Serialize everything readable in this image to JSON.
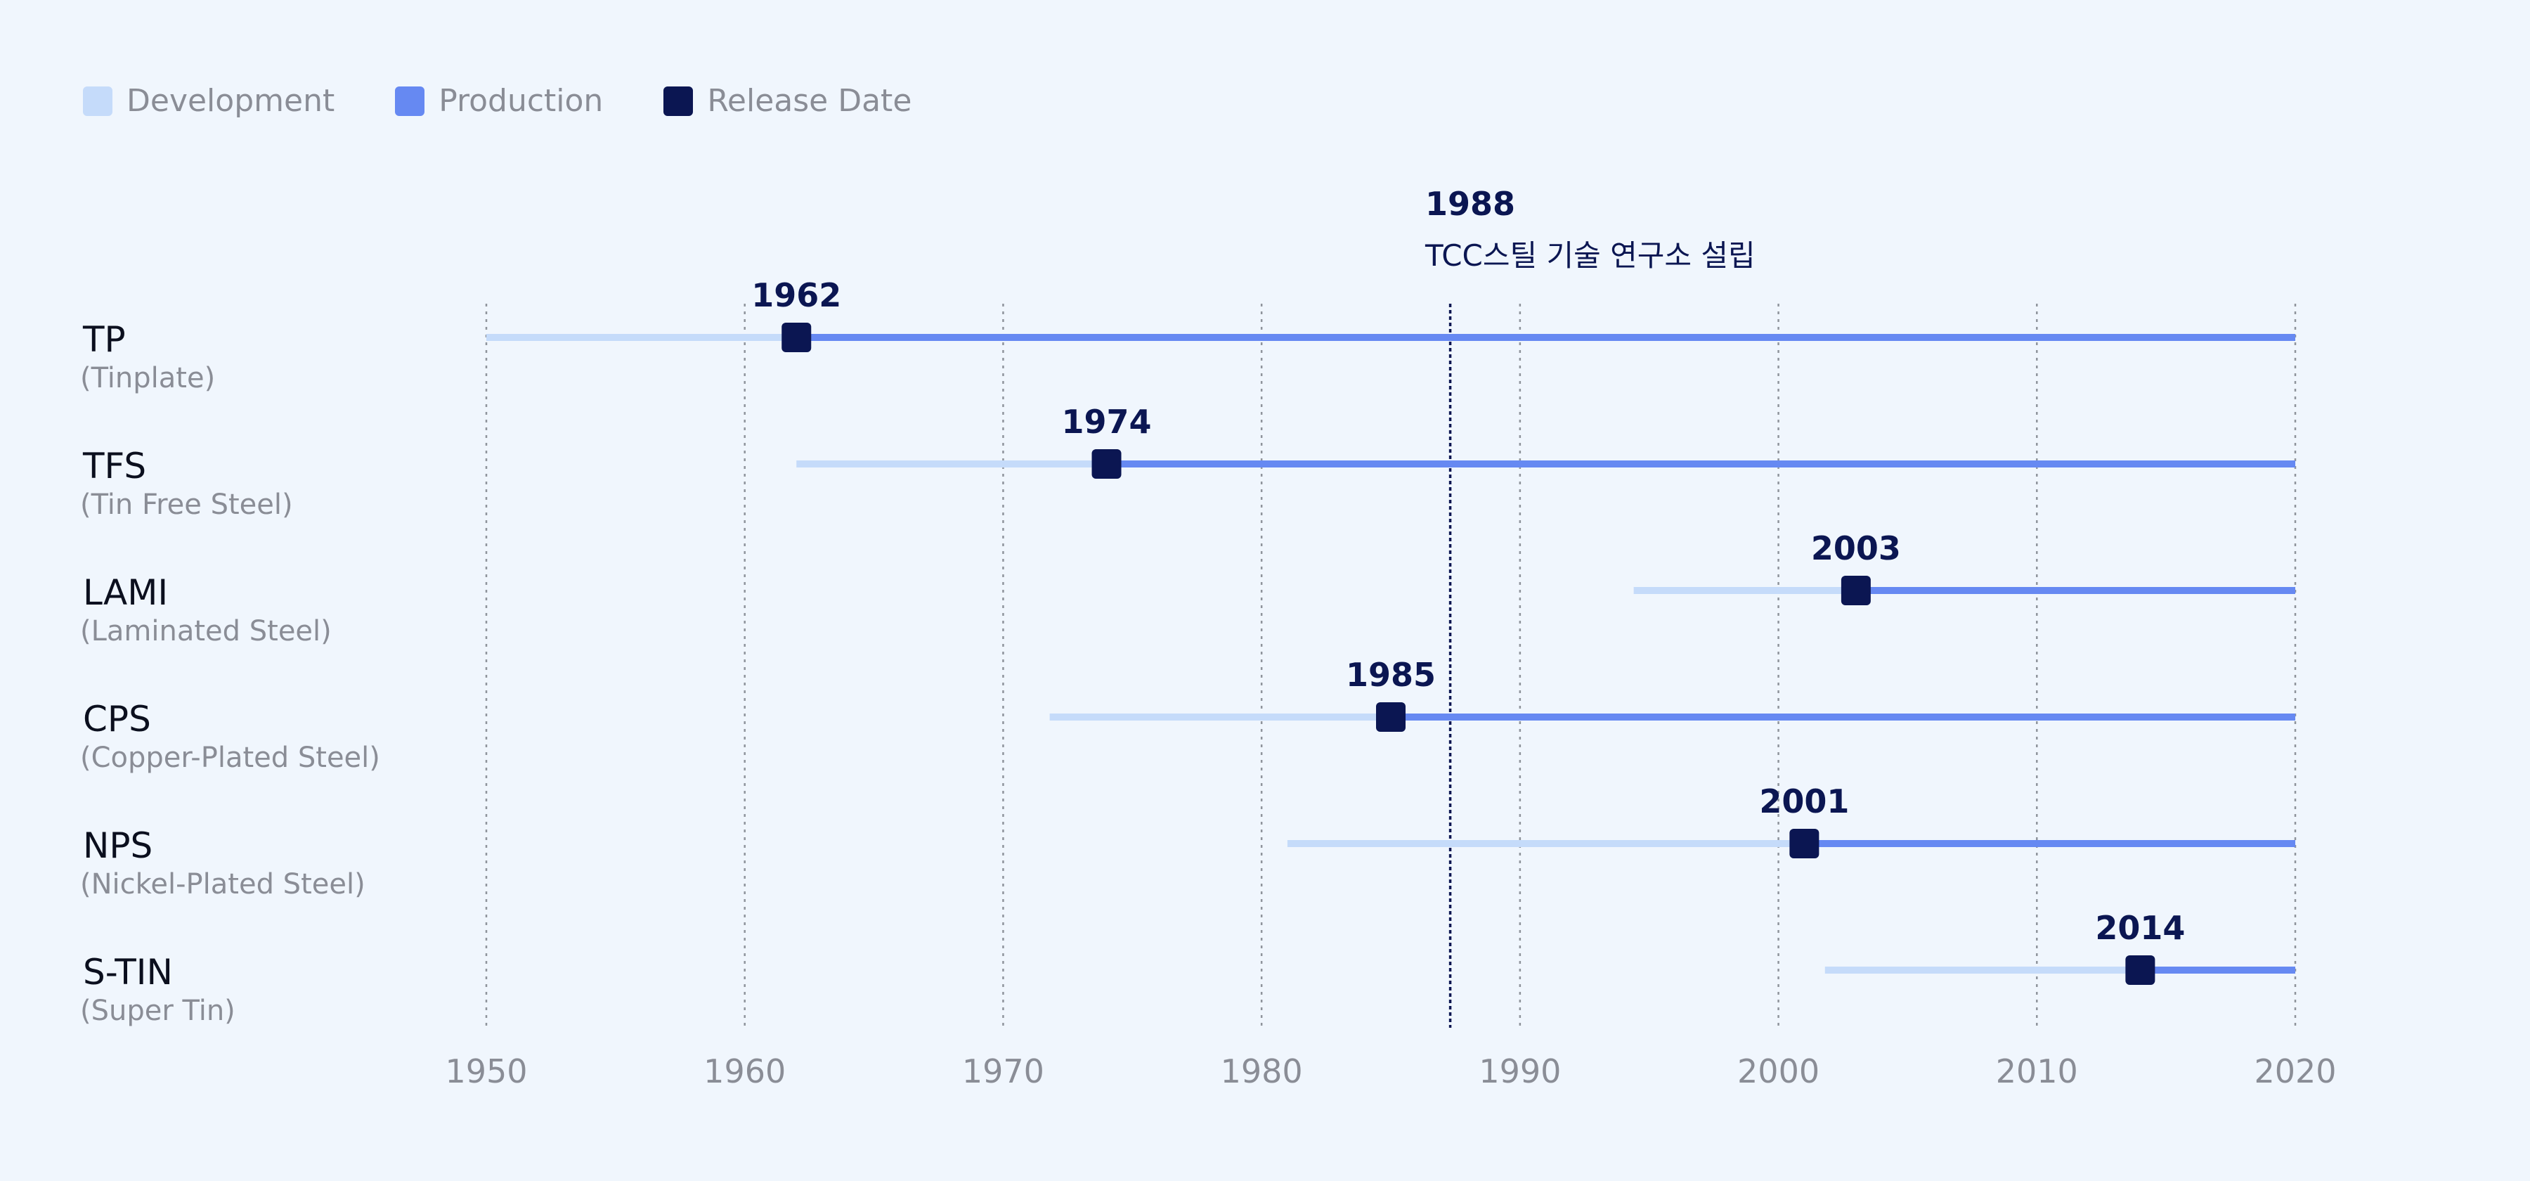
{
  "legend": {
    "development": "Development",
    "production": "Production",
    "release": "Release Date"
  },
  "colors": {
    "background": "#f0f6fd",
    "development": "#c5dbfa",
    "production": "#6689f2",
    "release": "#0b1652",
    "grid": "#8f949c",
    "milestone_line": "#0b1652",
    "tick_text": "#8a8d96",
    "label_text": "#0b1652"
  },
  "chart_data": {
    "type": "timeline",
    "xlim": [
      1950,
      2020
    ],
    "x_ticks": [
      1950,
      1960,
      1970,
      1980,
      1990,
      2000,
      2010,
      2020
    ],
    "grid": "vertical-dotted",
    "legend_position": "top-left",
    "rows": [
      {
        "code": "TP",
        "name": "(Tinplate)",
        "dev_start": 1950,
        "release": 1962,
        "end": 2020,
        "release_label": "1962"
      },
      {
        "code": "TFS",
        "name": "(Tin Free Steel)",
        "dev_start": 1962,
        "release": 1974,
        "end": 2020,
        "release_label": "1974"
      },
      {
        "code": "LAMI",
        "name": "(Laminated Steel)",
        "dev_start": 1994.4,
        "release": 2003,
        "end": 2020,
        "release_label": "2003"
      },
      {
        "code": "CPS",
        "name": "(Copper-Plated Steel)",
        "dev_start": 1971.8,
        "release": 1985,
        "end": 2020,
        "release_label": "1985"
      },
      {
        "code": "NPS",
        "name": "(Nickel-Plated Steel)",
        "dev_start": 1981,
        "release": 2001,
        "end": 2020,
        "release_label": "2001"
      },
      {
        "code": "S-TIN",
        "name": "(Super Tin)",
        "dev_start": 2001.8,
        "release": 2014,
        "end": 2020,
        "release_label": "2014"
      }
    ],
    "milestone": {
      "x": 1987.3,
      "year_label": "1988",
      "text": "TCC스틸 기술 연구소 설립"
    }
  }
}
